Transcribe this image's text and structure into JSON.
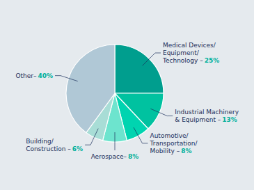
{
  "chart_data": {
    "type": "pie",
    "categories": [
      "Medical Devices/\nEquipment/\nTechnology –",
      "Industrial Machinery\n& Equipment –",
      "Automotive/\nTransportation/\nMobility –",
      "Aerospace–",
      "Building/\nConstruction –",
      "Other–"
    ],
    "values": [
      25,
      13,
      8,
      8,
      6,
      40
    ],
    "value_labels": [
      "25%",
      "13%",
      "8%",
      "8%",
      "6%",
      "40%"
    ],
    "data_labels": true,
    "colors": [
      "#009e8e",
      "#00c2a0",
      "#00d4b0",
      "#6de4ce",
      "#a8ddd6",
      "#b0c8d6"
    ]
  }
}
